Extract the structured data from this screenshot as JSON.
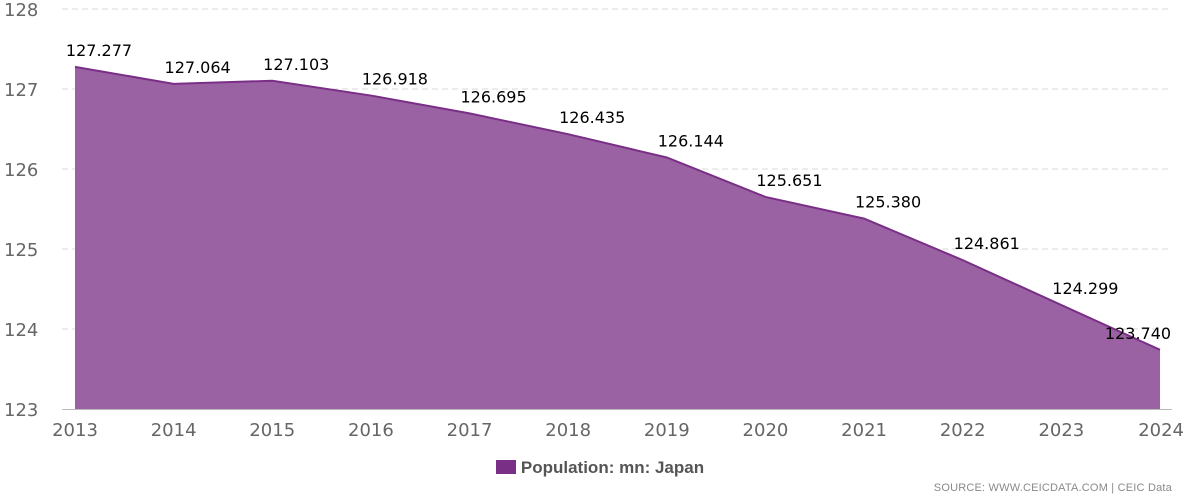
{
  "chart_data": {
    "type": "area",
    "title": "",
    "xlabel": "",
    "ylabel": "",
    "x": [
      "2013",
      "2014",
      "2015",
      "2016",
      "2017",
      "2018",
      "2019",
      "2020",
      "2021",
      "2022",
      "2023",
      "2024"
    ],
    "series": [
      {
        "name": "Population: mn: Japan",
        "values": [
          127.277,
          127.064,
          127.103,
          126.918,
          126.695,
          126.435,
          126.144,
          125.651,
          125.38,
          124.861,
          124.299,
          123.74
        ],
        "labels": [
          "127.277",
          "127.064",
          "127.103",
          "126.918",
          "126.695",
          "126.435",
          "126.144",
          "125.651",
          "125.380",
          "124.861",
          "124.299",
          "123.740"
        ]
      }
    ],
    "ylim": [
      123,
      128
    ],
    "yticks": [
      "123",
      "124",
      "125",
      "126",
      "127",
      "128"
    ],
    "grid": true,
    "legend_position": "bottom-center"
  },
  "colors": {
    "fill": "#9b62a3",
    "line": "#7a2f86",
    "swatch": "#7a2f86",
    "grid": "#d8d8d8",
    "axis": "#bbbbbb"
  },
  "legend": {
    "label": "Population: mn: Japan"
  },
  "source": "SOURCE: WWW.CEICDATA.COM | CEIC Data"
}
